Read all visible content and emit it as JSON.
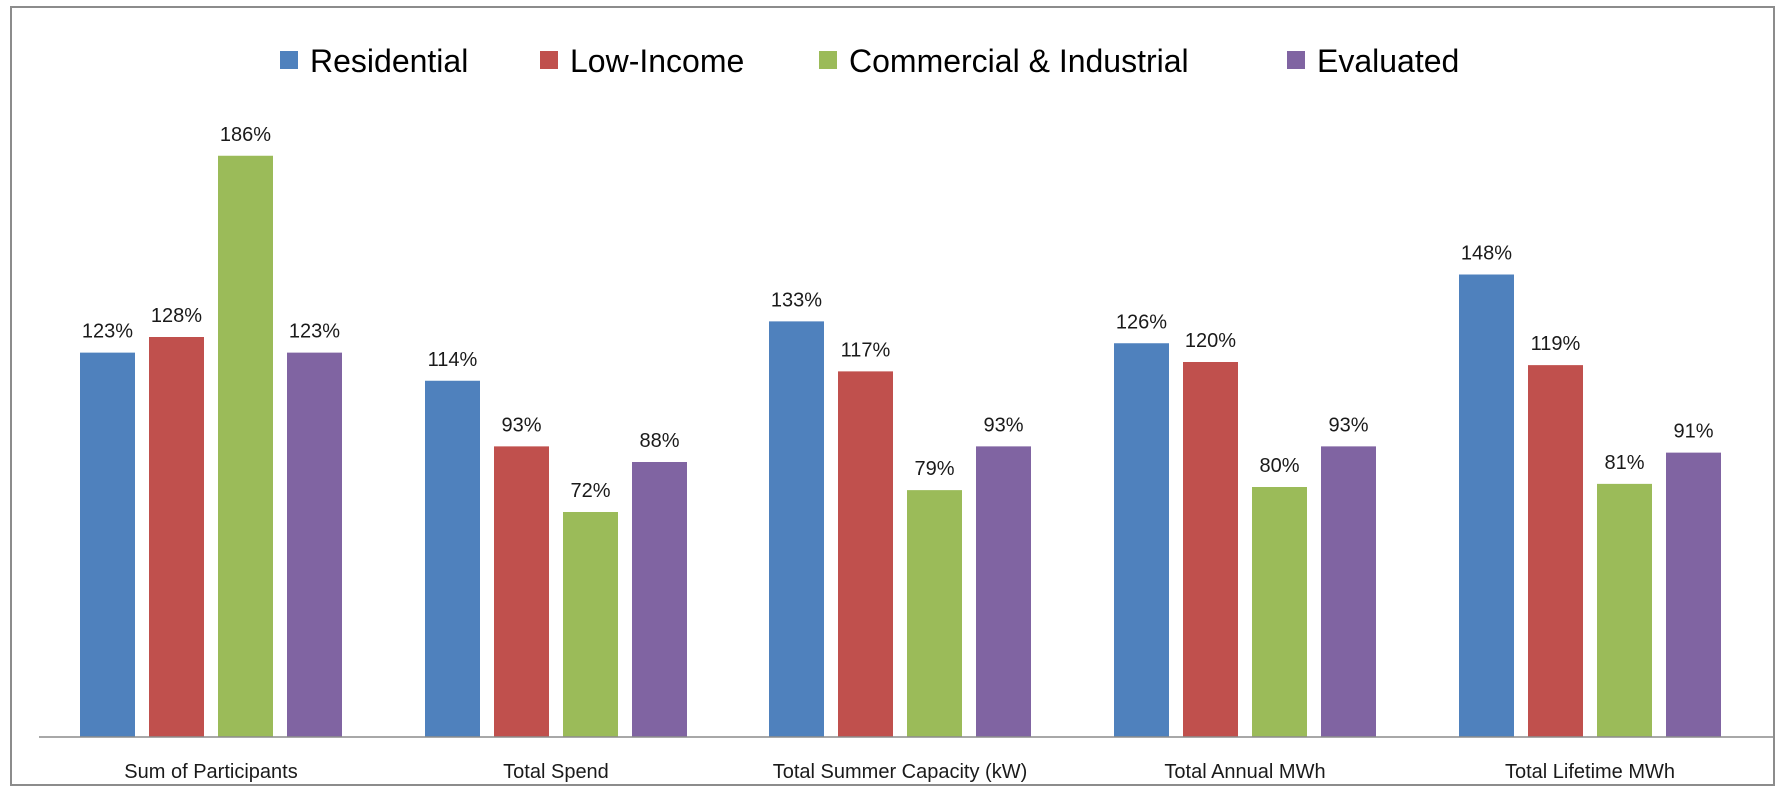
{
  "chart_data": {
    "type": "bar",
    "categories": [
      "Sum of Participants",
      "Total Spend",
      "Total Summer Capacity (kW)",
      "Total Annual MWh",
      "Total Lifetime MWh"
    ],
    "series": [
      {
        "name": "Residential",
        "color": "#4f81bd",
        "values": [
          123,
          114,
          133,
          126,
          148
        ],
        "labels": [
          "123%",
          "114%",
          "133%",
          "126%",
          "148%"
        ]
      },
      {
        "name": "Low-Income",
        "color": "#c0504d",
        "values": [
          128,
          93,
          117,
          120,
          119
        ],
        "labels": [
          "128%",
          "93%",
          "117%",
          "120%",
          "119%"
        ]
      },
      {
        "name": "Commercial & Industrial",
        "color": "#9bbb59",
        "values": [
          186,
          72,
          79,
          80,
          81
        ],
        "labels": [
          "186%",
          "72%",
          "79%",
          "80%",
          "81%"
        ]
      },
      {
        "name": "Evaluated",
        "color": "#8064a2",
        "values": [
          123,
          88,
          93,
          93,
          91
        ],
        "labels": [
          "123%",
          "88%",
          "93%",
          "93%",
          "91%"
        ]
      }
    ],
    "ylim": [
      0,
      186
    ],
    "legend_position": "top",
    "grid": false
  }
}
